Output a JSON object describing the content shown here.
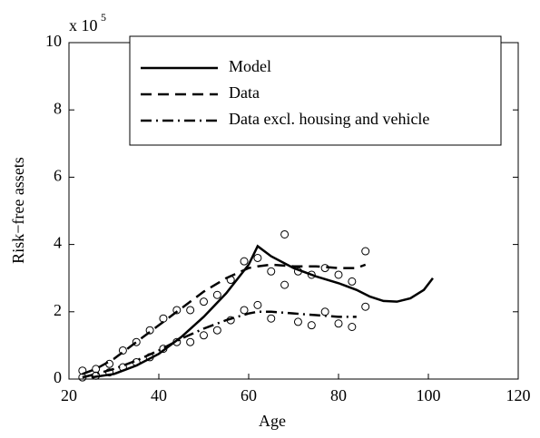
{
  "chart_data": {
    "type": "line",
    "xlabel": "Age",
    "ylabel": "Risk−free assets",
    "multiplier": {
      "base": "x 10",
      "exponent": "5"
    },
    "xlim": [
      20,
      120
    ],
    "xticks": [
      20,
      40,
      60,
      80,
      100,
      120
    ],
    "ylim": [
      0,
      10
    ],
    "yticks": [
      0,
      2,
      4,
      6,
      8,
      10
    ],
    "color": "#000000",
    "legend": "top",
    "series": [
      {
        "name": "Model",
        "style": "solid",
        "x": [
          25,
          30,
          35,
          40,
          45,
          50,
          55,
          60,
          62,
          65,
          70,
          75,
          80,
          84,
          87,
          90,
          93,
          96,
          99,
          101
        ],
        "values": [
          0.05,
          0.15,
          0.4,
          0.75,
          1.25,
          1.85,
          2.55,
          3.4,
          3.95,
          3.65,
          3.3,
          3.05,
          2.85,
          2.65,
          2.45,
          2.32,
          2.3,
          2.4,
          2.65,
          3.0
        ]
      },
      {
        "name": "Data",
        "style": "dashed",
        "x": [
          23,
          26,
          30,
          35,
          40,
          45,
          50,
          55,
          60,
          62,
          65,
          70,
          75,
          80,
          84,
          86
        ],
        "values": [
          0.15,
          0.3,
          0.6,
          1.1,
          1.6,
          2.1,
          2.6,
          3.0,
          3.3,
          3.35,
          3.4,
          3.35,
          3.35,
          3.3,
          3.3,
          3.4
        ]
      },
      {
        "name": "Data excl. housing and vehicle",
        "style": "dashdot",
        "x": [
          23,
          26,
          30,
          35,
          40,
          45,
          50,
          55,
          60,
          62,
          65,
          70,
          75,
          80,
          84
        ],
        "values": [
          0.05,
          0.15,
          0.3,
          0.55,
          0.85,
          1.2,
          1.5,
          1.75,
          1.95,
          2.0,
          2.0,
          1.95,
          1.9,
          1.85,
          1.85
        ]
      }
    ],
    "markers": [
      {
        "x": [
          23,
          26,
          29,
          32,
          35,
          38,
          41,
          44,
          47,
          50,
          53,
          56,
          59,
          62,
          65,
          68,
          71,
          74,
          77,
          80,
          83,
          86
        ],
        "values": [
          0.25,
          0.3,
          0.45,
          0.85,
          1.1,
          1.45,
          1.8,
          2.05,
          2.05,
          2.3,
          2.5,
          2.95,
          3.5,
          3.6,
          3.2,
          4.3,
          3.2,
          3.1,
          3.3,
          3.1,
          2.9,
          3.8
        ]
      },
      {
        "x": [
          23,
          26,
          29,
          32,
          35,
          38,
          41,
          44,
          47,
          50,
          53,
          56,
          59,
          62,
          65,
          68,
          71,
          74,
          77,
          80,
          83,
          86
        ],
        "values": [
          0.05,
          0.1,
          0.2,
          0.35,
          0.5,
          0.65,
          0.9,
          1.1,
          1.1,
          1.3,
          1.45,
          1.75,
          2.05,
          2.2,
          1.8,
          2.8,
          1.7,
          1.6,
          2.0,
          1.65,
          1.55,
          2.15
        ]
      }
    ]
  }
}
